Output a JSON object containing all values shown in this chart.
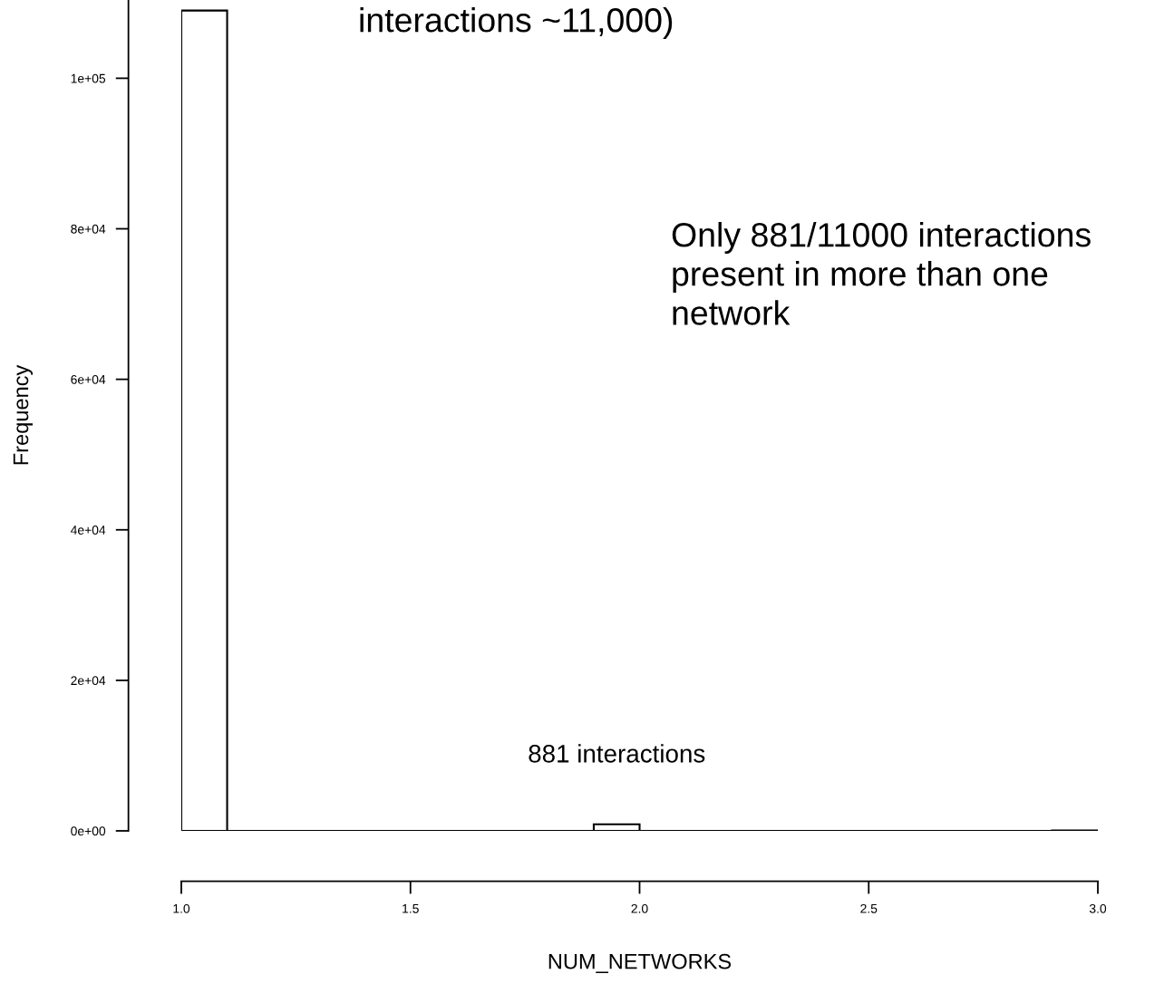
{
  "chart_data": {
    "type": "histogram",
    "xlabel": "NUM_NETWORKS",
    "ylabel": "Frequency",
    "bins": [
      1.0,
      1.1,
      1.2,
      1.3,
      1.4,
      1.5,
      1.6,
      1.7,
      1.8,
      1.9,
      2.0,
      2.1,
      2.2,
      2.3,
      2.4,
      2.5,
      2.6,
      2.7,
      2.8,
      2.9,
      3.0
    ],
    "values": [
      109000,
      0,
      0,
      0,
      0,
      0,
      0,
      0,
      0,
      881,
      0,
      0,
      0,
      0,
      0,
      0,
      0,
      0,
      0,
      50
    ],
    "xlim": [
      1.0,
      3.0
    ],
    "ylim": [
      0,
      110400
    ],
    "xticks": [
      {
        "value": 1.0,
        "label": "1.0"
      },
      {
        "value": 1.5,
        "label": "1.5"
      },
      {
        "value": 2.0,
        "label": "2.0"
      },
      {
        "value": 2.5,
        "label": "2.5"
      },
      {
        "value": 3.0,
        "label": "3.0"
      }
    ],
    "yticks": [
      {
        "value": 0,
        "label": "0e+00"
      },
      {
        "value": 20000,
        "label": "2e+04"
      },
      {
        "value": 40000,
        "label": "4e+04"
      },
      {
        "value": 60000,
        "label": "6e+04"
      },
      {
        "value": 80000,
        "label": "8e+04"
      },
      {
        "value": 100000,
        "label": "1e+05"
      }
    ],
    "grid": false,
    "annotations": [
      "interactions ~11,000)",
      "Only 881/11000 interactions present in more than one network",
      {
        "text": "881 interactions",
        "x": 1.95,
        "y": 881
      }
    ]
  }
}
